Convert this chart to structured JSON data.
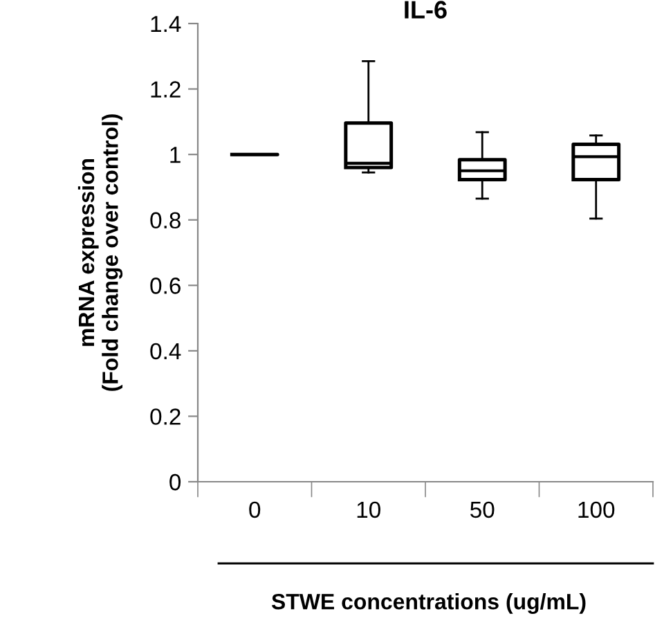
{
  "chart_data": {
    "type": "box",
    "title": "IL-6",
    "xlabel": "STWE concentrations (ug/mL)",
    "ylabel": "mRNA expression\n(Fold change over control)",
    "categories": [
      "0",
      "10",
      "50",
      "100"
    ],
    "boxes": [
      {
        "low": 1.0,
        "q1": 1.0,
        "median": 1.0,
        "q3": 1.0,
        "high": 1.0
      },
      {
        "low": 0.945,
        "q1": 0.96,
        "median": 0.973,
        "q3": 1.096,
        "high": 1.285
      },
      {
        "low": 0.865,
        "q1": 0.923,
        "median": 0.95,
        "q3": 0.984,
        "high": 1.068
      },
      {
        "low": 0.804,
        "q1": 0.923,
        "median": 0.993,
        "q3": 1.031,
        "high": 1.058
      }
    ],
    "ylim": [
      0,
      1.4
    ],
    "yticks": [
      0,
      0.2,
      0.4,
      0.6,
      0.8,
      1,
      1.2,
      1.4
    ],
    "grid": false
  }
}
